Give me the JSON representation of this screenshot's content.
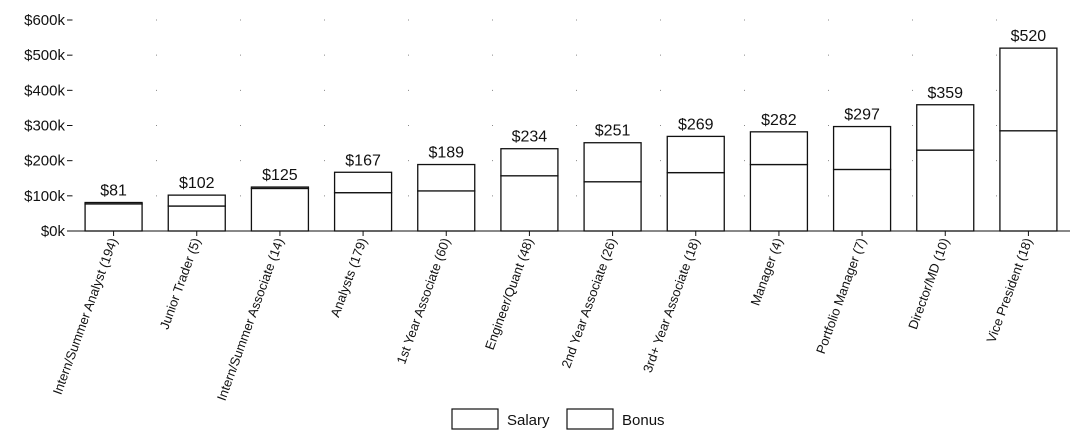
{
  "chart_data": {
    "type": "bar",
    "stacked": true,
    "categories": [
      "Intern/Summer Analyst (194)",
      "Junior Trader (5)",
      "Intern/Summer Associate (14)",
      "Analysts (179)",
      "1st Year Associate (60)",
      "Engineer/Quant (48)",
      "2nd Year Associate (26)",
      "3rd+ Year Associate (18)",
      "Manager (4)",
      "Portfolio Manager (7)",
      "Director/MD (10)",
      "Vice President (18)"
    ],
    "series": [
      {
        "name": "Salary",
        "values": [
          77,
          71,
          121,
          109,
          114,
          157,
          140,
          166,
          189,
          175,
          230,
          285
        ]
      },
      {
        "name": "Bonus",
        "values": [
          4,
          31,
          4,
          58,
          75,
          77,
          111,
          103,
          93,
          122,
          129,
          235
        ]
      }
    ],
    "totals": [
      81,
      102,
      125,
      167,
      189,
      234,
      251,
      269,
      282,
      297,
      359,
      520
    ],
    "total_labels": [
      "$81",
      "$102",
      "$125",
      "$167",
      "$189",
      "$234",
      "$251",
      "$269",
      "$282",
      "$297",
      "$359",
      "$520"
    ],
    "ylim": [
      0,
      600
    ],
    "yticks": [
      0,
      100,
      200,
      300,
      400,
      500,
      600
    ],
    "ytick_labels": [
      "$0k",
      "$100k",
      "$200k",
      "$300k",
      "$400k",
      "$500k",
      "$600k"
    ],
    "title": "",
    "xlabel": "",
    "ylabel": "",
    "grid": "dotted",
    "legend_position": "bottom-center",
    "colors": {
      "salary": "#ffffff",
      "bonus": "#ffffff",
      "stroke": "#111111"
    }
  }
}
